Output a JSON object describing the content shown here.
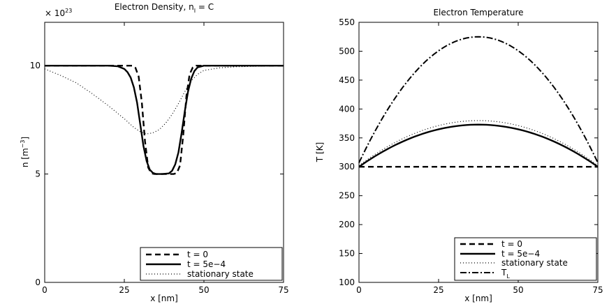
{
  "chart_data": [
    {
      "type": "line",
      "title": "Electron Density, n",
      "title_sub": "I",
      "title_suffix": " = C",
      "xlabel": "x [nm]",
      "ylabel": "n [m",
      "ylabel_sup": "−3",
      "ylabel_suffix": "]",
      "y_multiplier": "× 10",
      "y_multiplier_exp": "23",
      "xlim": [
        0,
        75
      ],
      "ylim": [
        0,
        12
      ],
      "xticks": [
        "0",
        "25",
        "50",
        "75"
      ],
      "yticks": [
        "0",
        "5",
        "10"
      ],
      "legend_position": "bottom-right",
      "series": [
        {
          "name": "t = 0",
          "style": "dashed",
          "x": [
            0,
            27.5,
            28.5,
            29.5,
            30.5,
            31.5,
            32.5,
            33.5,
            34.5,
            40.5,
            41.5,
            42.5,
            43.5,
            44.5,
            45.5,
            46.5,
            47.5,
            75
          ],
          "y": [
            10,
            10,
            9.9,
            9.5,
            8.3,
            6.5,
            5.3,
            5.03,
            5,
            5,
            5.05,
            5.4,
            6.8,
            8.6,
            9.6,
            9.92,
            10,
            10
          ]
        },
        {
          "name": "t = 5e−4",
          "style": "solid",
          "x": [
            0,
            20,
            23,
            25,
            26,
            27,
            28,
            29,
            30,
            31,
            32,
            33,
            34,
            35,
            37,
            39,
            40,
            41,
            42,
            43,
            44,
            45,
            46,
            47,
            48,
            50,
            75
          ],
          "y": [
            10,
            10,
            9.97,
            9.85,
            9.7,
            9.45,
            9.0,
            8.3,
            7.3,
            6.3,
            5.6,
            5.2,
            5.05,
            5.0,
            5.0,
            5.03,
            5.15,
            5.45,
            6.0,
            6.9,
            7.9,
            8.8,
            9.4,
            9.75,
            9.92,
            10,
            10
          ]
        },
        {
          "name": "stationary state",
          "style": "dotted",
          "x": [
            0,
            5,
            10,
            15,
            20,
            25,
            28,
            30,
            32,
            34,
            36,
            38,
            40,
            42,
            44,
            46,
            48,
            50,
            55,
            60,
            65,
            70,
            75
          ],
          "y": [
            9.85,
            9.55,
            9.2,
            8.7,
            8.15,
            7.55,
            7.15,
            6.95,
            6.85,
            6.9,
            7.05,
            7.35,
            7.75,
            8.25,
            8.8,
            9.3,
            9.6,
            9.78,
            9.9,
            9.95,
            9.97,
            9.98,
            10
          ]
        }
      ]
    },
    {
      "type": "line",
      "title": "Electron Temperature",
      "xlabel": "x [nm]",
      "ylabel": "T [K]",
      "xlim": [
        0,
        75
      ],
      "ylim": [
        100,
        550
      ],
      "xticks": [
        "0",
        "25",
        "50",
        "75"
      ],
      "yticks": [
        "100",
        "150",
        "200",
        "250",
        "300",
        "350",
        "400",
        "450",
        "500",
        "550"
      ],
      "legend_position": "bottom-right",
      "series": [
        {
          "name": "t = 0",
          "style": "dashed",
          "x": [
            0,
            75
          ],
          "y": [
            300,
            300
          ],
          "hidden_behind_solid": true
        },
        {
          "name": "t = 5e−4",
          "style": "solid",
          "peak": 373,
          "peak_x": 37.5,
          "end_value": 300
        },
        {
          "name": "stationary state",
          "style": "dotted",
          "peak": 380,
          "peak_x": 37.5,
          "end_value": 302
        },
        {
          "name": "T",
          "name_sub": "L",
          "style": "dashdot",
          "peak": 525,
          "peak_x": 37.5,
          "end_value": 307
        }
      ]
    }
  ]
}
